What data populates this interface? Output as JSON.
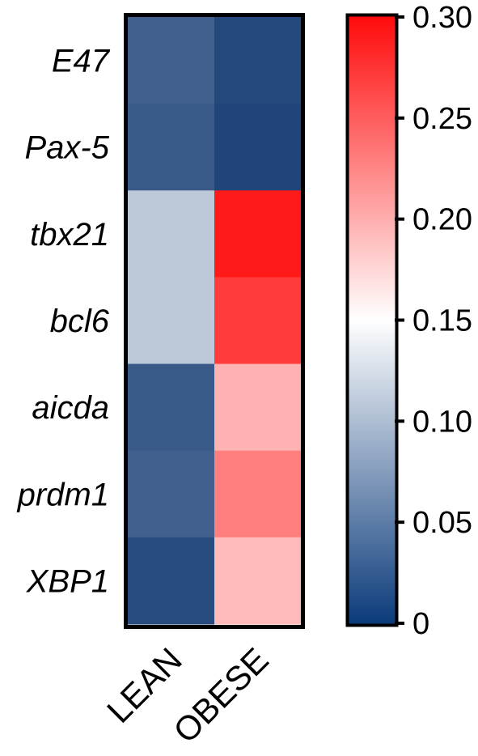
{
  "chart_data": {
    "type": "heatmap",
    "rows": [
      "E47",
      "Pax-5",
      "tbx21",
      "bcl6",
      "aicda",
      "prdm1",
      "XBP1"
    ],
    "columns": [
      "LEAN",
      "OBESE"
    ],
    "values": [
      [
        0.035,
        0.018
      ],
      [
        0.03,
        0.015
      ],
      [
        0.11,
        0.285
      ],
      [
        0.11,
        0.265
      ],
      [
        0.03,
        0.195
      ],
      [
        0.035,
        0.225
      ],
      [
        0.02,
        0.19
      ]
    ],
    "colorbar": {
      "min": 0,
      "max": 0.3,
      "ticks": [
        0,
        0.05,
        0.1,
        0.15,
        0.2,
        0.25,
        0.3
      ],
      "tick_labels": [
        "0",
        "0.05",
        "0.10",
        "0.15",
        "0.20",
        "0.25",
        "0.30"
      ],
      "colors": [
        "#08306b",
        "#ffffff",
        "#ff0000"
      ],
      "midpoint": 0.15
    }
  }
}
